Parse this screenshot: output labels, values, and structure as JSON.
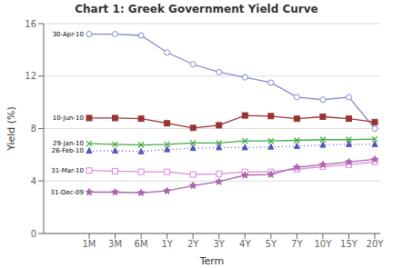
{
  "chart_data": {
    "type": "line",
    "title": "Chart 1: Greek Government Yield Curve",
    "x_label": "Term",
    "y_label": "Yield (%)",
    "categories": [
      "1M",
      "3M",
      "6M",
      "1Y",
      "2Y",
      "3Y",
      "4Y",
      "5Y",
      "7Y",
      "10Y",
      "15Y",
      "20Y"
    ],
    "series": [
      {
        "name": "30-Apr-10",
        "color": "#8888cc",
        "marker": "circle-open",
        "line_style": "solid",
        "values": [
          15.2,
          15.2,
          15.1,
          13.8,
          12.9,
          12.3,
          11.9,
          11.5,
          10.4,
          10.2,
          10.4,
          8.0
        ]
      },
      {
        "name": "10-Jun-10",
        "color": "#993333",
        "marker": "square",
        "line_style": "solid",
        "values": [
          8.8,
          8.8,
          8.75,
          8.4,
          8.05,
          8.25,
          9.0,
          8.95,
          8.75,
          8.9,
          8.75,
          8.5
        ]
      },
      {
        "name": "29-Jan-10",
        "color": "#44aa44",
        "marker": "x",
        "line_style": "solid",
        "values": [
          6.85,
          6.8,
          6.75,
          6.8,
          6.9,
          6.9,
          7.05,
          7.05,
          7.1,
          7.15,
          7.15,
          7.2
        ]
      },
      {
        "name": "26-Feb-10",
        "color": "#5555bb",
        "marker": "triangle",
        "line_style": "dotted",
        "values": [
          6.3,
          6.3,
          6.25,
          6.4,
          6.5,
          6.55,
          6.55,
          6.6,
          6.65,
          6.75,
          6.8,
          6.8
        ]
      },
      {
        "name": "31-Mar-10",
        "color": "#dd88dd",
        "marker": "square-open",
        "line_style": "solid",
        "values": [
          4.8,
          4.75,
          4.7,
          4.7,
          4.5,
          4.55,
          4.7,
          4.7,
          4.9,
          5.1,
          5.25,
          5.45
        ]
      },
      {
        "name": "31-Dec-09",
        "color": "#aa66aa",
        "marker": "star",
        "line_style": "solid",
        "values": [
          3.15,
          3.15,
          3.1,
          3.25,
          3.65,
          3.95,
          4.45,
          4.5,
          5.05,
          5.25,
          5.45,
          5.65
        ]
      }
    ],
    "ylim": [
      0,
      16
    ],
    "yticks": [
      0,
      4,
      8,
      12,
      16
    ],
    "grid": true
  }
}
